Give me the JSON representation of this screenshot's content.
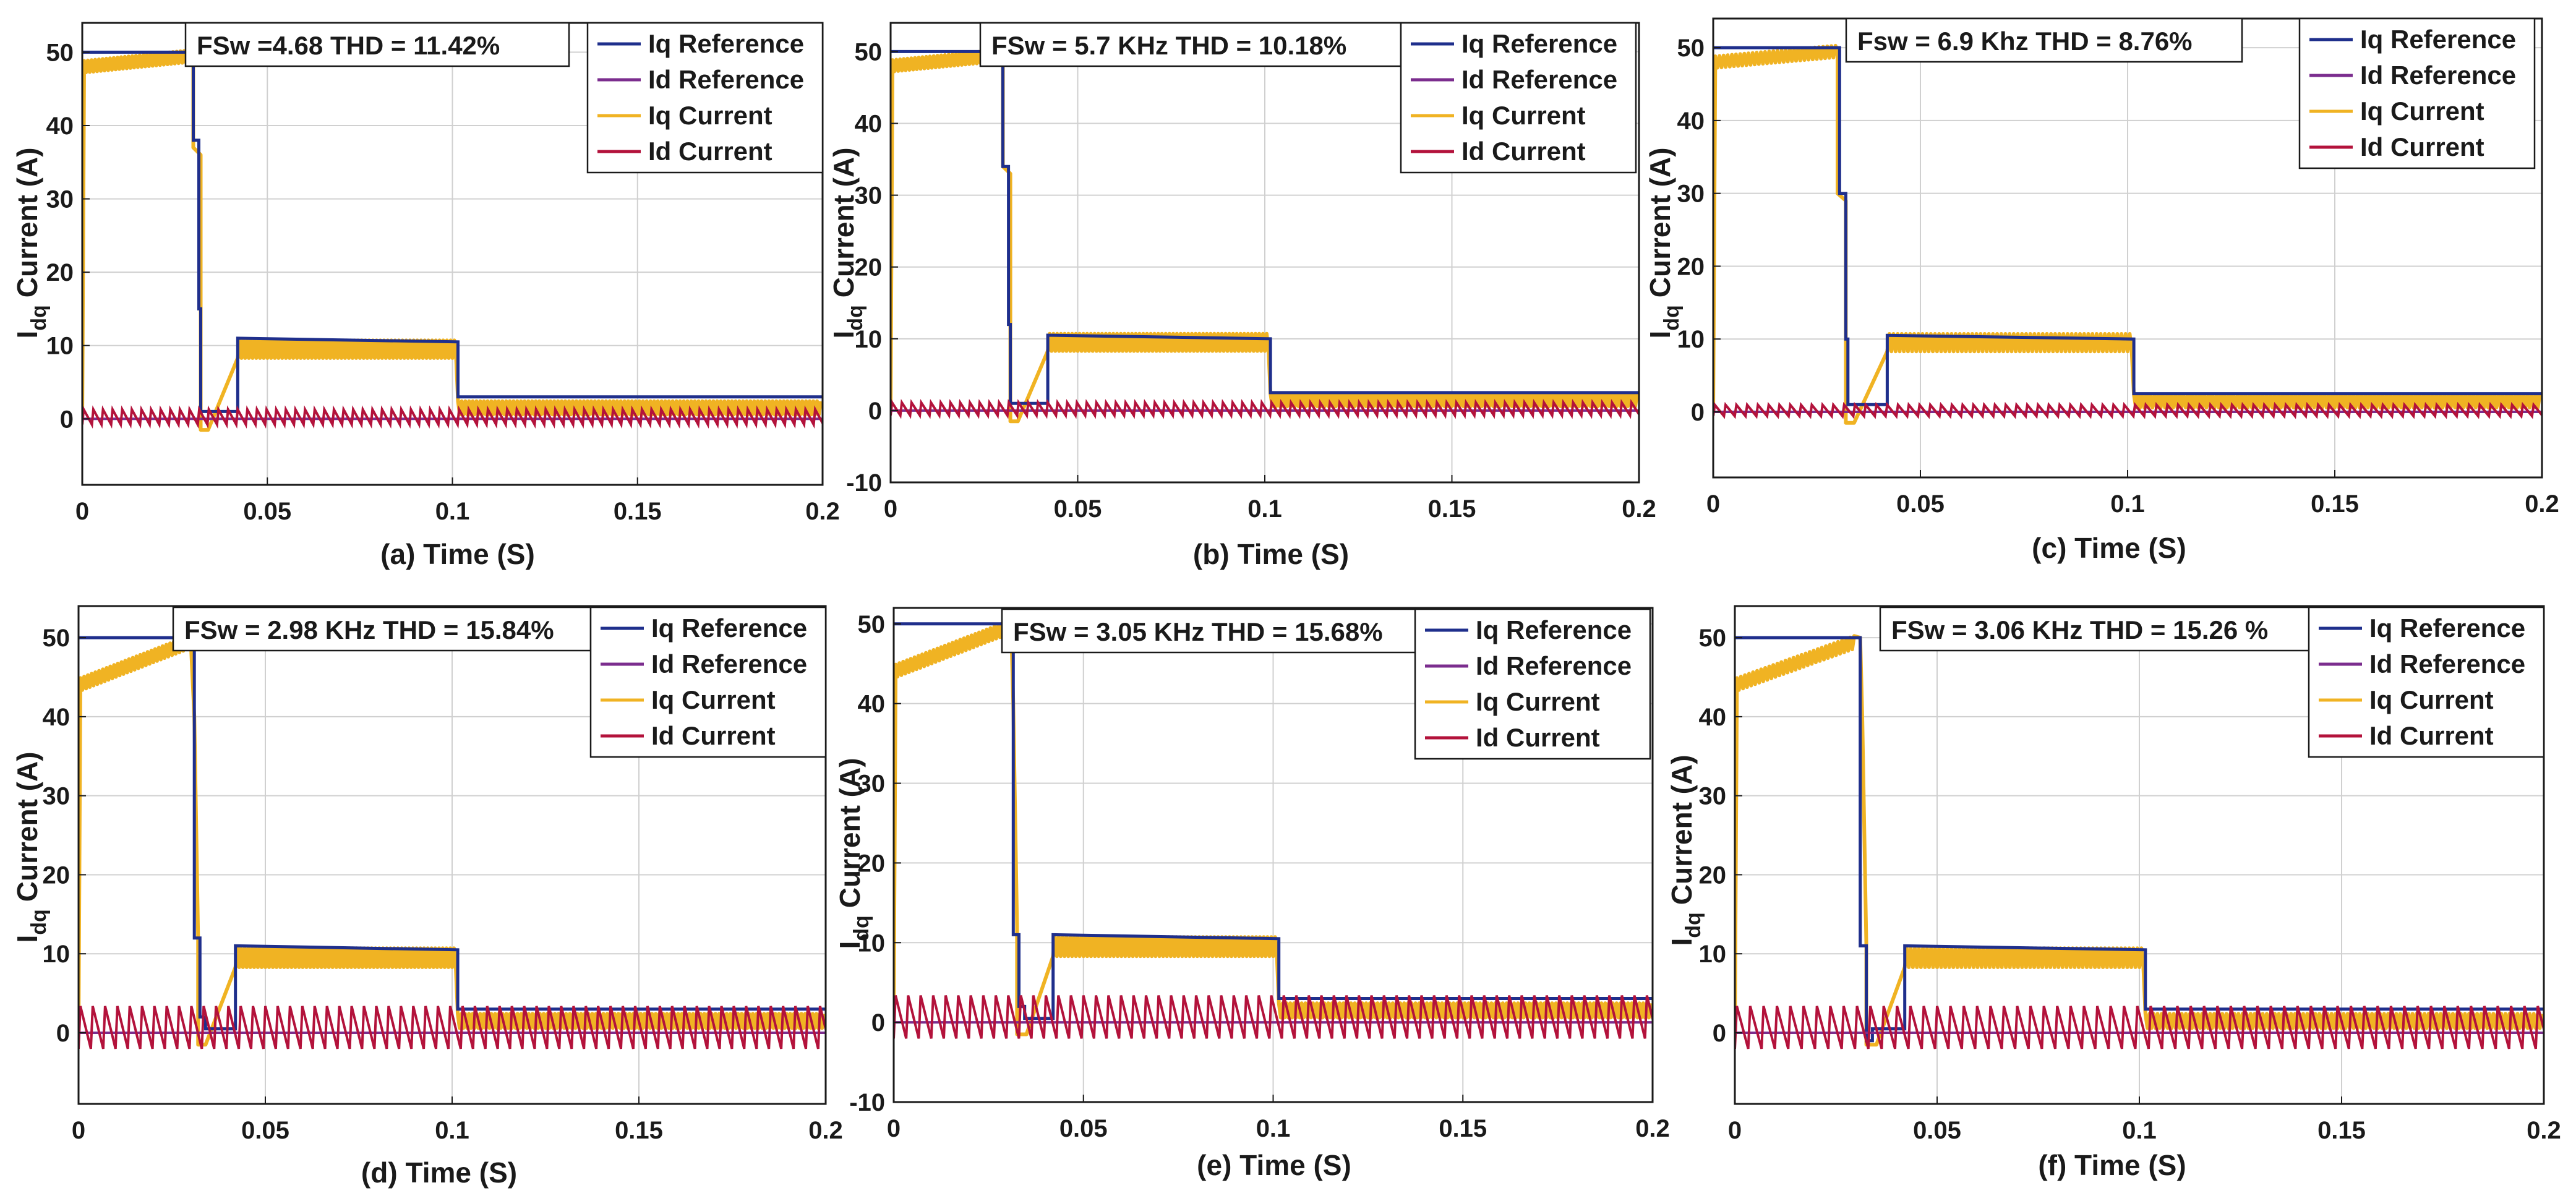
{
  "chart_data": [
    {
      "type": "line",
      "panel": "a",
      "annotation": "FSw =4.68 THD = 11.42%",
      "xlabel": "(a) Time (S)",
      "ylabel_main": "I",
      "ylabel_sub": "dq",
      "ylabel_rest": "Current (A)",
      "xlim": [
        0,
        0.2
      ],
      "ylim": [
        -9,
        54
      ],
      "xticks": [
        0,
        0.05,
        0.1,
        0.15,
        0.2
      ],
      "xtick_labels": [
        "0",
        "0.05",
        "0.1",
        "0.15",
        "0.2"
      ],
      "yticks": [
        0,
        10,
        20,
        30,
        40,
        50
      ],
      "ytick_labels": [
        "0",
        "10",
        "20",
        "30",
        "40",
        "50"
      ],
      "grid": true,
      "legend_position": "top-right",
      "iq_start": 48,
      "ripple_ld": 0.8,
      "series": [
        {
          "name": "Iq Reference",
          "color": "#1f2f8c",
          "x": [
            0,
            0.03,
            0.03,
            0.0315,
            0.0315,
            0.032,
            0.032,
            0.042,
            0.042,
            0.1015,
            0.1015,
            0.2
          ],
          "y": [
            50,
            50,
            38,
            38,
            15,
            15,
            1,
            1,
            11,
            10.5,
            3,
            3
          ]
        },
        {
          "name": "Id Reference",
          "color": "#7b2d8e",
          "x": [
            0,
            0.2
          ],
          "y": [
            0,
            0
          ]
        },
        {
          "name": "Iq Current",
          "color": "#f0b323",
          "x": [
            0,
            0.0005,
            0.03,
            0.03,
            0.032,
            0.032,
            0.034,
            0.042,
            0.042,
            0.1015,
            0.1015,
            0.2
          ],
          "y": [
            0,
            48,
            49.5,
            37,
            36,
            -1.5,
            -1.5,
            1,
            9.5,
            9.5,
            1.5,
            1.5
          ]
        },
        {
          "name": "Id Current",
          "color": "#b3123b",
          "x": [
            0,
            0.2
          ],
          "y": [
            0,
            0
          ]
        }
      ]
    },
    {
      "type": "line",
      "panel": "b",
      "annotation": "FSw = 5.7 KHz THD = 10.18%",
      "xlabel": "(b) Time (S)",
      "ylabel_main": "I",
      "ylabel_sub": "dq",
      "ylabel_rest": "Current (A)",
      "xlim": [
        0,
        0.2
      ],
      "ylim": [
        -10,
        54
      ],
      "xticks": [
        0,
        0.05,
        0.1,
        0.15,
        0.2
      ],
      "xtick_labels": [
        "0",
        "0.05",
        "0.1",
        "0.15",
        "0.2"
      ],
      "yticks": [
        -10,
        0,
        10,
        20,
        30,
        40,
        50
      ],
      "ytick_labels": [
        "-10",
        "0",
        "10",
        "20",
        "30",
        "40",
        "50"
      ],
      "grid": true,
      "legend_position": "top-right",
      "iq_start": 48,
      "ripple_ld": 0.7,
      "series": [
        {
          "name": "Iq Reference",
          "color": "#1f2f8c",
          "x": [
            0,
            0.03,
            0.03,
            0.0315,
            0.0315,
            0.032,
            0.032,
            0.042,
            0.042,
            0.1015,
            0.1015,
            0.2
          ],
          "y": [
            50,
            50,
            34,
            34,
            12,
            12,
            1,
            1,
            10.5,
            10,
            2.5,
            2.5
          ]
        },
        {
          "name": "Id Reference",
          "color": "#7b2d8e",
          "x": [
            0,
            0.2
          ],
          "y": [
            0,
            0
          ]
        },
        {
          "name": "Iq Current",
          "color": "#f0b323",
          "x": [
            0,
            0.0005,
            0.03,
            0.03,
            0.032,
            0.032,
            0.034,
            0.042,
            0.042,
            0.1015,
            0.1015,
            0.2
          ],
          "y": [
            0,
            48,
            49,
            34,
            33,
            -1.5,
            -1.5,
            1,
            9.5,
            9.5,
            1.5,
            1.5
          ]
        },
        {
          "name": "Id Current",
          "color": "#b3123b",
          "x": [
            0,
            0.2
          ],
          "y": [
            0,
            0
          ]
        }
      ]
    },
    {
      "type": "line",
      "panel": "c",
      "annotation": "Fsw = 6.9 Khz THD = 8.76%",
      "xlabel": "(c) Time (S)",
      "ylabel_main": "I",
      "ylabel_sub": "dq",
      "ylabel_rest": "Current (A)",
      "xlim": [
        0,
        0.2
      ],
      "ylim": [
        -9,
        54
      ],
      "xticks": [
        0,
        0.05,
        0.1,
        0.15,
        0.2
      ],
      "xtick_labels": [
        "0",
        "0.05",
        "0.1",
        "0.15",
        "0.2"
      ],
      "yticks": [
        0,
        10,
        20,
        30,
        40,
        50
      ],
      "ytick_labels": [
        "0",
        "10",
        "20",
        "30",
        "40",
        "50"
      ],
      "grid": true,
      "legend_position": "top-right",
      "iq_start": 48,
      "ripple_ld": 0.6,
      "series": [
        {
          "name": "Iq Reference",
          "color": "#1f2f8c",
          "x": [
            0,
            0.0305,
            0.0305,
            0.032,
            0.032,
            0.0325,
            0.0325,
            0.042,
            0.042,
            0.1015,
            0.1015,
            0.2
          ],
          "y": [
            50,
            50,
            30,
            30,
            10,
            10,
            1,
            1,
            10.5,
            10,
            2.5,
            2.5
          ]
        },
        {
          "name": "Id Reference",
          "color": "#7b2d8e",
          "x": [
            0,
            0.2
          ],
          "y": [
            0,
            0
          ]
        },
        {
          "name": "Iq Current",
          "color": "#f0b323",
          "x": [
            0,
            0.0005,
            0.03,
            0.03,
            0.032,
            0.032,
            0.034,
            0.042,
            0.042,
            0.1015,
            0.1015,
            0.2
          ],
          "y": [
            0,
            48,
            49.5,
            30,
            29,
            -1.5,
            -1.5,
            1,
            9.5,
            9.5,
            1.5,
            1.5
          ]
        },
        {
          "name": "Id Current",
          "color": "#b3123b",
          "x": [
            0,
            0.2
          ],
          "y": [
            0,
            0
          ]
        }
      ]
    },
    {
      "type": "line",
      "panel": "d",
      "annotation": "FSw = 2.98 KHz THD = 15.84%",
      "xlabel": "(d) Time (S)",
      "ylabel_main": "I",
      "ylabel_sub": "dq",
      "ylabel_rest": "Current (A)",
      "xlim": [
        0,
        0.2
      ],
      "ylim": [
        -9,
        54
      ],
      "xticks": [
        0,
        0.05,
        0.1,
        0.15,
        0.2
      ],
      "xtick_labels": [
        "0",
        "0.05",
        "0.1",
        "0.15",
        "0.2"
      ],
      "yticks": [
        0,
        10,
        20,
        30,
        40,
        50
      ],
      "ytick_labels": [
        "0",
        "10",
        "20",
        "30",
        "40",
        "50"
      ],
      "grid": true,
      "legend_position": "top-right",
      "iq_start": 44,
      "ripple_ld": 1.3,
      "series": [
        {
          "name": "Iq Reference",
          "color": "#1f2f8c",
          "x": [
            0,
            0.031,
            0.031,
            0.0325,
            0.0325,
            0.034,
            0.034,
            0.042,
            0.042,
            0.1015,
            0.1015,
            0.2
          ],
          "y": [
            50,
            50,
            12,
            12,
            2,
            2,
            0.5,
            0.5,
            11,
            10.5,
            3,
            3
          ]
        },
        {
          "name": "Id Reference",
          "color": "#7b2d8e",
          "x": [
            0,
            0.2
          ],
          "y": [
            0,
            0
          ]
        },
        {
          "name": "Iq Current",
          "color": "#f0b323",
          "x": [
            0,
            0.0005,
            0.03,
            0.031,
            0.032,
            0.032,
            0.034,
            0.042,
            0.042,
            0.1015,
            0.1015,
            0.2
          ],
          "y": [
            0,
            44,
            50,
            40,
            12,
            -1.5,
            -1.5,
            1,
            9.5,
            9.5,
            1.5,
            1.5
          ]
        },
        {
          "name": "Id Current",
          "color": "#b3123b",
          "x": [
            0,
            0.2
          ],
          "y": [
            0,
            0
          ]
        }
      ]
    },
    {
      "type": "line",
      "panel": "e",
      "annotation": "FSw = 3.05 KHz THD = 15.68%",
      "xlabel": "(e) Time (S)",
      "ylabel_main": "I",
      "ylabel_sub": "dq",
      "ylabel_rest": "Current (A)",
      "xlim": [
        0,
        0.2
      ],
      "ylim": [
        -10,
        52
      ],
      "xticks": [
        0,
        0.05,
        0.1,
        0.15,
        0.2
      ],
      "xtick_labels": [
        "0",
        "0.05",
        "0.1",
        "0.15",
        "0.2"
      ],
      "yticks": [
        -10,
        0,
        10,
        20,
        30,
        40,
        50
      ],
      "ytick_labels": [
        "-10",
        "0",
        "10",
        "20",
        "30",
        "40",
        "50"
      ],
      "grid": true,
      "legend_position": "top-right",
      "iq_start": 44,
      "ripple_ld": 1.3,
      "series": [
        {
          "name": "Iq Reference",
          "color": "#1f2f8c",
          "x": [
            0,
            0.0315,
            0.0315,
            0.033,
            0.033,
            0.0345,
            0.0345,
            0.042,
            0.042,
            0.1015,
            0.1015,
            0.2
          ],
          "y": [
            50,
            50,
            11,
            11,
            2,
            2,
            0.5,
            0.5,
            11,
            10.5,
            3,
            3
          ]
        },
        {
          "name": "Id Reference",
          "color": "#7b2d8e",
          "x": [
            0,
            0.2
          ],
          "y": [
            0,
            0
          ]
        },
        {
          "name": "Iq Current",
          "color": "#f0b323",
          "x": [
            0,
            0.0005,
            0.031,
            0.0315,
            0.0325,
            0.0325,
            0.035,
            0.042,
            0.042,
            0.1015,
            0.1015,
            0.2
          ],
          "y": [
            0,
            44,
            49,
            40,
            12,
            -1.5,
            -1.5,
            1,
            9.5,
            9.5,
            1.5,
            1.5
          ]
        },
        {
          "name": "Id Current",
          "color": "#b3123b",
          "x": [
            0,
            0.2
          ],
          "y": [
            0,
            0
          ]
        }
      ]
    },
    {
      "type": "line",
      "panel": "f",
      "annotation": "FSw = 3.06 KHz THD = 15.26 %",
      "xlabel": "(f) Time (S)",
      "ylabel_main": "I",
      "ylabel_sub": "dq",
      "ylabel_rest": "Current (A)",
      "xlim": [
        0,
        0.2
      ],
      "ylim": [
        -9,
        54
      ],
      "xticks": [
        0,
        0.05,
        0.1,
        0.15,
        0.2
      ],
      "xtick_labels": [
        "0",
        "0.05",
        "0.1",
        "0.15",
        "0.2"
      ],
      "yticks": [
        0,
        10,
        20,
        30,
        40,
        50
      ],
      "ytick_labels": [
        "0",
        "10",
        "20",
        "30",
        "40",
        "50"
      ],
      "grid": true,
      "legend_position": "top-right",
      "iq_start": 44,
      "ripple_ld": 1.3,
      "series": [
        {
          "name": "Iq Reference",
          "color": "#1f2f8c",
          "x": [
            0,
            0.031,
            0.031,
            0.0325,
            0.0325,
            0.034,
            0.034,
            0.042,
            0.042,
            0.1015,
            0.1015,
            0.2
          ],
          "y": [
            50,
            50,
            11,
            11,
            -1,
            -1,
            0.5,
            0.5,
            11,
            10.5,
            3,
            3
          ]
        },
        {
          "name": "Id Reference",
          "color": "#7b2d8e",
          "x": [
            0,
            0.2
          ],
          "y": [
            0,
            0
          ]
        },
        {
          "name": "Iq Current",
          "color": "#f0b323",
          "x": [
            0,
            0.0005,
            0.031,
            0.0315,
            0.0325,
            0.0325,
            0.035,
            0.042,
            0.042,
            0.1015,
            0.1015,
            0.2
          ],
          "y": [
            0,
            44,
            50,
            40,
            11,
            -1.5,
            -1.5,
            1,
            9.5,
            9.5,
            1.5,
            1.5
          ]
        },
        {
          "name": "Id Current",
          "color": "#b3123b",
          "x": [
            0,
            0.2
          ],
          "y": [
            0,
            0
          ]
        }
      ]
    }
  ]
}
